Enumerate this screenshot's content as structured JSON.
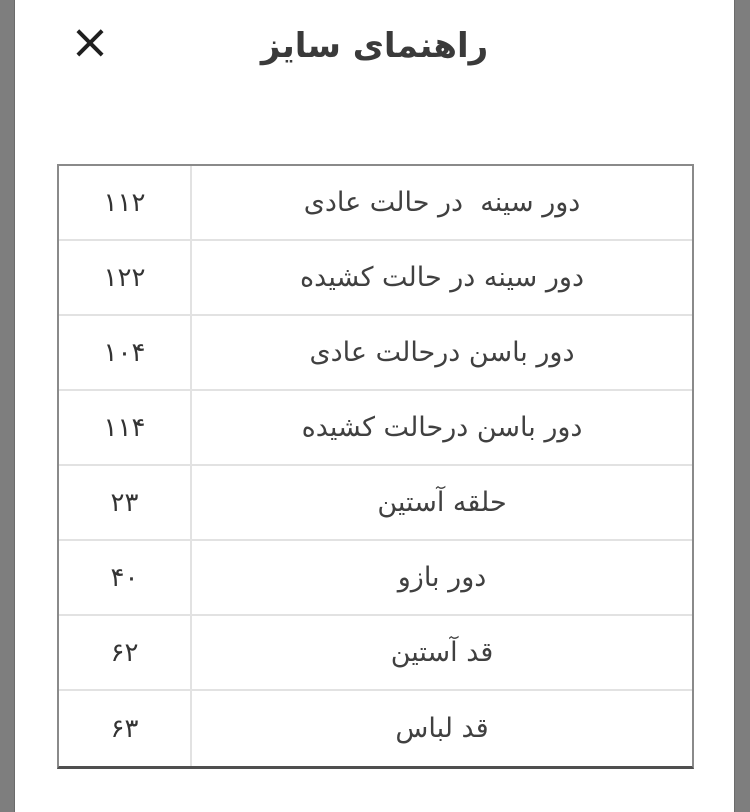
{
  "modal": {
    "title": "راهنمای سایز",
    "close_label": "×"
  },
  "size_table": {
    "rows": [
      {
        "label": "دور سینه  در حالت عادی",
        "value": "۱۱۲"
      },
      {
        "label": "دور سینه در حالت کشیده",
        "value": "۱۲۲"
      },
      {
        "label": "دور باسن درحالت عادی",
        "value": "۱۰۴"
      },
      {
        "label": "دور باسن درحالت کشیده",
        "value": "۱۱۴"
      },
      {
        "label": "حلقه آستین",
        "value": "۲۳"
      },
      {
        "label": "دور بازو",
        "value": "۴۰"
      },
      {
        "label": "قد آستین",
        "value": "۶۲"
      },
      {
        "label": "قد لباس",
        "value": "۶۳"
      }
    ]
  },
  "colors": {
    "backdrop_strip": "#7e7e7e",
    "title_text": "#3a3a3a",
    "label_text": "#404040",
    "value_text": "#333333",
    "outer_border": "#8a8a8a",
    "bottom_border": "#4f4f4f",
    "separator": "#e2e2e2"
  }
}
